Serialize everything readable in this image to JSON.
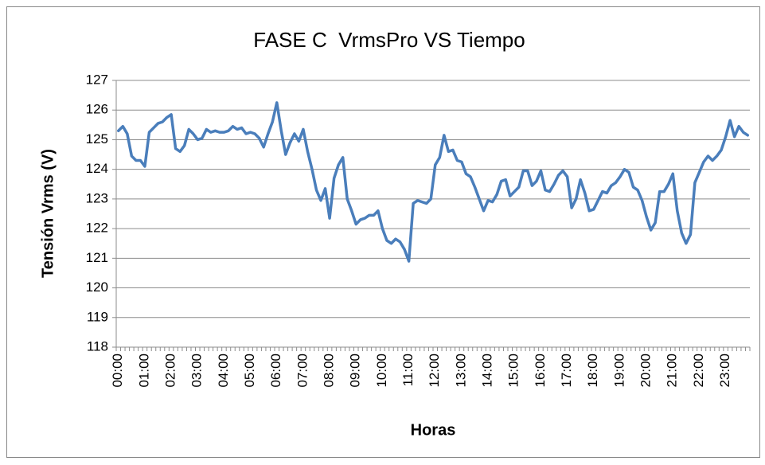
{
  "chart_data": {
    "type": "line",
    "title": "FASE C  VrmsPro VS Tiempo",
    "x_label": "Horas",
    "y_label": "Tensión Vrms (V)",
    "color": "#4a7ebb",
    "grid": true,
    "ylim": [
      118,
      127
    ],
    "yticks": [
      118,
      119,
      120,
      121,
      122,
      123,
      124,
      125,
      126,
      127
    ],
    "categories": [
      "00:00",
      null,
      null,
      null,
      null,
      null,
      "01:00",
      null,
      null,
      null,
      null,
      null,
      "02:00",
      null,
      null,
      null,
      null,
      null,
      "03:00",
      null,
      null,
      null,
      null,
      null,
      "04:00",
      null,
      null,
      null,
      null,
      null,
      "05:00",
      null,
      null,
      null,
      null,
      null,
      "06:00",
      null,
      null,
      null,
      null,
      null,
      "07:00",
      null,
      null,
      null,
      null,
      null,
      "08:00",
      null,
      null,
      null,
      null,
      null,
      "09:00",
      null,
      null,
      null,
      null,
      null,
      "10:00",
      null,
      null,
      null,
      null,
      null,
      "11:00",
      null,
      null,
      null,
      null,
      null,
      "12:00",
      null,
      null,
      null,
      null,
      null,
      "13:00",
      null,
      null,
      null,
      null,
      null,
      "14:00",
      null,
      null,
      null,
      null,
      null,
      "15:00",
      null,
      null,
      null,
      null,
      null,
      "16:00",
      null,
      null,
      null,
      null,
      null,
      "17:00",
      null,
      null,
      null,
      null,
      null,
      "18:00",
      null,
      null,
      null,
      null,
      null,
      "19:00",
      null,
      null,
      null,
      null,
      null,
      "20:00",
      null,
      null,
      null,
      null,
      null,
      "21:00",
      null,
      null,
      null,
      null,
      null,
      "22:00",
      null,
      null,
      null,
      null,
      null,
      "23:00",
      null,
      null,
      null,
      null,
      null
    ],
    "values": [
      125.3,
      125.45,
      125.2,
      124.45,
      124.3,
      124.3,
      124.1,
      125.25,
      125.4,
      125.55,
      125.6,
      125.75,
      125.85,
      124.7,
      124.6,
      124.8,
      125.35,
      125.2,
      125.0,
      125.05,
      125.35,
      125.25,
      125.3,
      125.25,
      125.25,
      125.3,
      125.45,
      125.35,
      125.4,
      125.2,
      125.25,
      125.2,
      125.05,
      124.75,
      125.2,
      125.6,
      126.25,
      125.3,
      124.5,
      124.9,
      125.2,
      124.95,
      125.35,
      124.6,
      124.0,
      123.3,
      122.95,
      123.35,
      122.35,
      123.7,
      124.15,
      124.4,
      123.0,
      122.6,
      122.15,
      122.3,
      122.35,
      122.45,
      122.45,
      122.6,
      122.0,
      121.6,
      121.5,
      121.65,
      121.55,
      121.3,
      120.9,
      122.85,
      122.95,
      122.9,
      122.85,
      123.0,
      124.15,
      124.4,
      125.15,
      124.6,
      124.65,
      124.3,
      124.25,
      123.85,
      123.75,
      123.4,
      123.0,
      122.6,
      122.95,
      122.9,
      123.15,
      123.6,
      123.65,
      123.1,
      123.25,
      123.4,
      123.95,
      123.95,
      123.45,
      123.6,
      123.95,
      123.3,
      123.25,
      123.5,
      123.8,
      123.95,
      123.75,
      122.7,
      123.0,
      123.65,
      123.2,
      122.6,
      122.65,
      122.95,
      123.25,
      123.2,
      123.45,
      123.55,
      123.75,
      124.0,
      123.9,
      123.4,
      123.3,
      122.95,
      122.4,
      121.95,
      122.2,
      123.25,
      123.25,
      123.5,
      123.85,
      122.6,
      121.85,
      121.5,
      121.8,
      123.55,
      123.9,
      124.25,
      124.45,
      124.3,
      124.45,
      124.65,
      125.1,
      125.65,
      125.1,
      125.45,
      125.25,
      125.15
    ]
  }
}
